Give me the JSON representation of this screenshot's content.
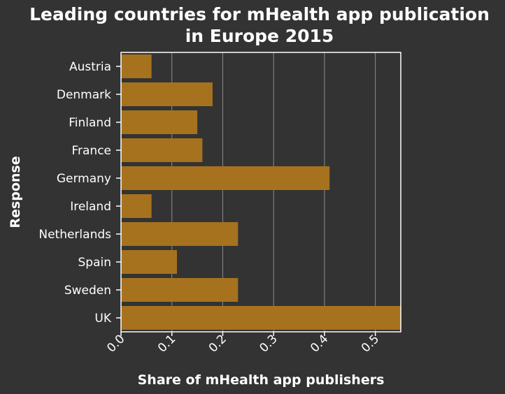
{
  "chart_data": {
    "type": "bar",
    "orientation": "horizontal",
    "title": "Leading countries for mHealth app publication in Europe 2015",
    "title_lines": [
      "Leading countries for mHealth app publication",
      "in Europe 2015"
    ],
    "xlabel": "Share of mHealth app publishers",
    "ylabel": "Response",
    "categories": [
      "Austria",
      "Denmark",
      "Finland",
      "France",
      "Germany",
      "Ireland",
      "Netherlands",
      "Spain",
      "Sweden",
      "UK"
    ],
    "values": [
      0.06,
      0.18,
      0.15,
      0.16,
      0.41,
      0.06,
      0.23,
      0.11,
      0.23,
      0.55
    ],
    "xlim": [
      0,
      0.55
    ],
    "xticks": [
      "0.0",
      "0.1",
      "0.2",
      "0.3",
      "0.4",
      "0.5"
    ],
    "grid": true,
    "legend": "none",
    "colors": {
      "background": "#333333",
      "bar": "#a6721e",
      "text": "#ffffff",
      "grid": "#8c8c8c"
    }
  }
}
